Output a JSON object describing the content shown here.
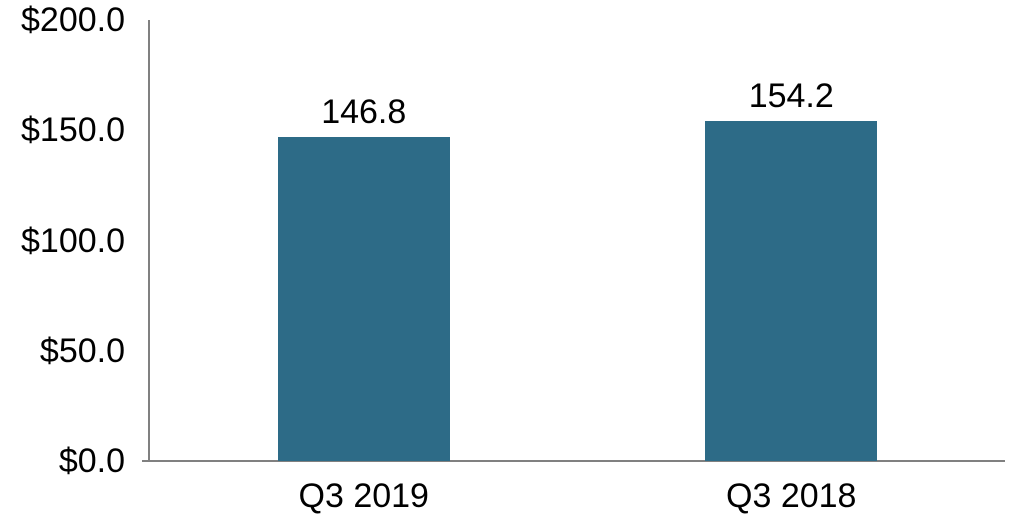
{
  "chart_data": {
    "type": "bar",
    "title": "",
    "xlabel": "",
    "ylabel": "",
    "categories": [
      "Q3 2019",
      "Q3 2018"
    ],
    "values": [
      146.8,
      154.2
    ],
    "value_labels": [
      "146.8",
      "154.2"
    ],
    "ylim": [
      0,
      200
    ],
    "y_ticks": [
      0,
      50,
      100,
      150,
      200
    ],
    "y_tick_labels": [
      "$0.0",
      "$50.0",
      "$100.0",
      "$150.0",
      "$200.0"
    ],
    "grid": false,
    "legend": "none",
    "colors": {
      "bar": "#2d6b87",
      "axis": "#808080",
      "text": "#000000",
      "background": "#ffffff"
    }
  }
}
